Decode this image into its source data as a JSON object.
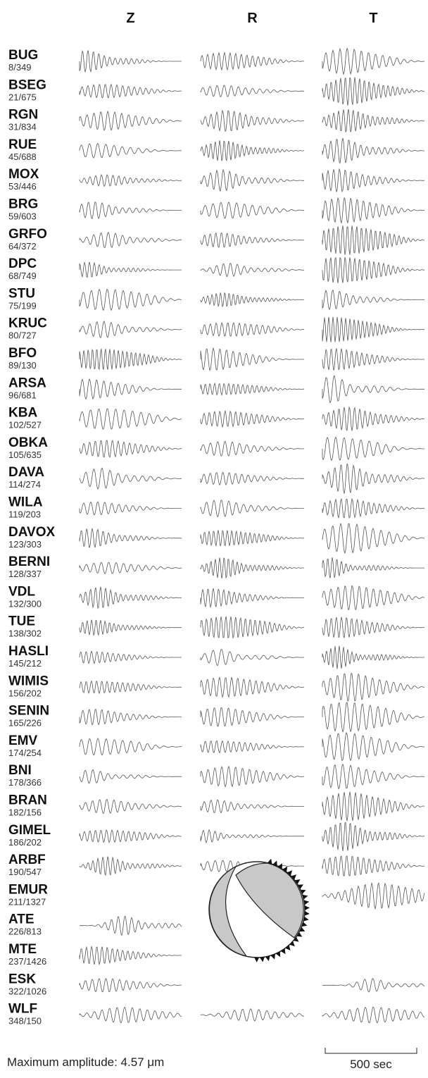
{
  "columns": [
    "Z",
    "R",
    "T"
  ],
  "stations": [
    {
      "name": "BUG",
      "info": "8/349"
    },
    {
      "name": "BSEG",
      "info": "21/675"
    },
    {
      "name": "RGN",
      "info": "31/834"
    },
    {
      "name": "RUE",
      "info": "45/688"
    },
    {
      "name": "MOX",
      "info": "53/446"
    },
    {
      "name": "BRG",
      "info": "59/603"
    },
    {
      "name": "GRFO",
      "info": "64/372"
    },
    {
      "name": "DPC",
      "info": "68/749"
    },
    {
      "name": "STU",
      "info": "75/199"
    },
    {
      "name": "KRUC",
      "info": "80/727"
    },
    {
      "name": "BFO",
      "info": "89/130"
    },
    {
      "name": "ARSA",
      "info": "96/681"
    },
    {
      "name": "KBA",
      "info": "102/527"
    },
    {
      "name": "OBKA",
      "info": "105/635"
    },
    {
      "name": "DAVA",
      "info": "114/274"
    },
    {
      "name": "WILA",
      "info": "119/203"
    },
    {
      "name": "DAVOX",
      "info": "123/303"
    },
    {
      "name": "BERNI",
      "info": "128/337"
    },
    {
      "name": "VDL",
      "info": "132/300"
    },
    {
      "name": "TUE",
      "info": "138/302"
    },
    {
      "name": "HASLI",
      "info": "145/212"
    },
    {
      "name": "WIMIS",
      "info": "156/202"
    },
    {
      "name": "SENIN",
      "info": "165/226"
    },
    {
      "name": "EMV",
      "info": "174/254"
    },
    {
      "name": "BNI",
      "info": "178/366"
    },
    {
      "name": "BRAN",
      "info": "182/156"
    },
    {
      "name": "GIMEL",
      "info": "186/202"
    },
    {
      "name": "ARBF",
      "info": "190/547"
    },
    {
      "name": "EMUR",
      "info": "211/1327"
    },
    {
      "name": "ATE",
      "info": "226/813"
    },
    {
      "name": "MTE",
      "info": "237/1426"
    },
    {
      "name": "ESK",
      "info": "322/1026"
    },
    {
      "name": "WLF",
      "info": "348/150"
    }
  ],
  "footer": {
    "amplitude": "Maximum amplitude: 4.57 μm",
    "scale": "500 sec"
  }
}
